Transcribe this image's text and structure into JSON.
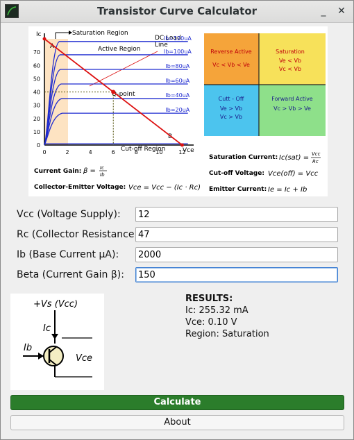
{
  "window": {
    "title": "Transistor Curve Calculator",
    "minimize_glyph": "_",
    "close_glyph": "✕"
  },
  "figure": {
    "curve_chart": {
      "type": "line",
      "ylabel": "Ic",
      "xlabel": "Vce",
      "xlim": [
        0,
        13
      ],
      "ylim": [
        0,
        80
      ],
      "x_ticks": [
        "0",
        "2",
        "4",
        "6",
        "8",
        "10",
        "12"
      ],
      "y_ticks": [
        "0",
        "10",
        "20",
        "30",
        "40",
        "50",
        "60",
        "70"
      ],
      "series": [
        {
          "name": "Ib=120uA",
          "values": [
            0,
            78
          ]
        },
        {
          "name": "Ib=100uA",
          "values": [
            0,
            68
          ]
        },
        {
          "name": "Ib=80uA",
          "values": [
            0,
            57
          ]
        },
        {
          "name": "Ib=60uA",
          "values": [
            0,
            46
          ]
        },
        {
          "name": "Ib=40uA",
          "values": [
            0,
            35
          ]
        },
        {
          "name": "Ib=20uA",
          "values": [
            0,
            24
          ]
        }
      ],
      "load_line": {
        "x": [
          0,
          12
        ],
        "y": [
          80,
          0
        ]
      },
      "q_point": {
        "x": 6,
        "y": 40
      }
    },
    "labels": {
      "saturation_region": "Saturation Region",
      "active_region": "Active Region",
      "cutoff_region": "Cut-off Region",
      "dc_load_line": "DC Load\nLine",
      "q_point": "Q-point",
      "point_a": "A",
      "point_b": "B"
    },
    "quadrants": {
      "reverse_active": {
        "title": "Reverse Active",
        "cond": "Vc < Vb < Ve",
        "color": "#f5a43a"
      },
      "saturation": {
        "title": "Saturation",
        "cond1": "Ve < Vb",
        "cond2": "Vc < Vb",
        "color": "#f7e15a"
      },
      "cutoff": {
        "title": "Cutt - Off",
        "cond1": "Ve > Vb",
        "cond2": "Vc > Vb",
        "color": "#4cc4ee"
      },
      "forward_active": {
        "title": "Forward Active",
        "cond": "Vc > Vb > Ve",
        "color": "#8ee08a"
      }
    },
    "formulas": {
      "current_gain_label": "Current Gain:",
      "current_gain_lhs": "β =",
      "current_gain_num": "Ic",
      "current_gain_den": "Ib",
      "vce_label": "Collector-Emitter Voltage:",
      "vce_expr": "Vce = Vcc − (Ic · Rc)",
      "sat_label": "Saturation Current:",
      "sat_lhs": "Ic(sat) =",
      "sat_num": "Vcc",
      "sat_den": "Rc",
      "cutoff_label": "Cut-off Voltage:",
      "cutoff_expr": "Vce(off) = Vcc",
      "emitter_label": "Emitter Current:",
      "emitter_expr": "Ie = Ic + Ib"
    }
  },
  "form": {
    "vcc": {
      "label": "Vcc (Voltage Supply):",
      "value": "12"
    },
    "rc": {
      "label": "Rc (Collector Resistance Ω):",
      "value": "47"
    },
    "ib": {
      "label": "Ib (Base Current μA):",
      "value": "2000"
    },
    "beta": {
      "label": "Beta (Current Gain β):",
      "value": "150"
    }
  },
  "circuit": {
    "vs_label": "+Vs (Vcc)",
    "ic_label": "Ic",
    "ib_label": "Ib",
    "vce_label": "Vce"
  },
  "results": {
    "heading": "RESULTS:",
    "ic": "Ic: 255.32 mA",
    "vce": "Vce: 0.10 V",
    "region": "Region: Saturation"
  },
  "buttons": {
    "calculate": "Calculate",
    "about": "About"
  },
  "colors": {
    "calculate_bg": "#2b7d2b",
    "curve_blue": "#1f2bd0",
    "load_line_red": "#dd1111",
    "saturation_shade": "#fde3c2"
  }
}
